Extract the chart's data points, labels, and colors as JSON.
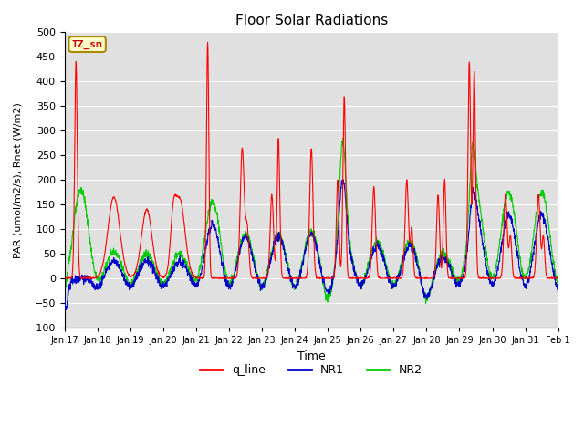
{
  "title": "Floor Solar Radiations",
  "xlabel": "Time",
  "ylabel": "PAR (umol/m2/s), Rnet (W/m2)",
  "ylim": [
    -100,
    500
  ],
  "yticks": [
    -100,
    -50,
    0,
    50,
    100,
    150,
    200,
    250,
    300,
    350,
    400,
    450,
    500
  ],
  "bg_color": "#e0e0e0",
  "fig_color": "#ffffff",
  "annotation_text": "TZ_sm",
  "annotation_bg": "#ffffcc",
  "annotation_fg": "#cc0000",
  "line_colors": {
    "q_line": "#ff0000",
    "NR1": "#0000cc",
    "NR2": "#00cc00"
  },
  "legend_labels": [
    "q_line",
    "NR1",
    "NR2"
  ],
  "n_days": 15,
  "start_day": 17,
  "pts_per_day": 144
}
